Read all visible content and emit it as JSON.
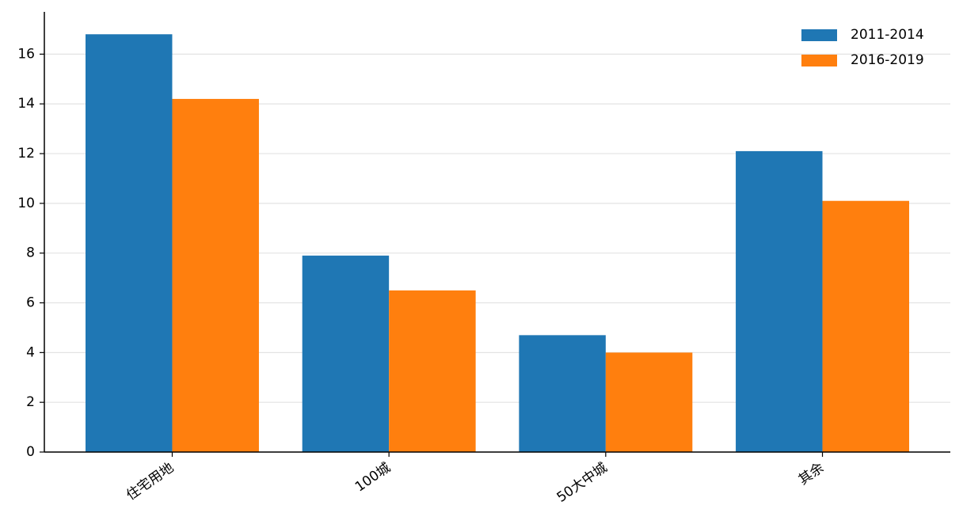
{
  "chart_data": {
    "type": "bar",
    "categories": [
      "住宅用地",
      "100城",
      "50大中城",
      "其余"
    ],
    "series": [
      {
        "name": "2011-2014",
        "color": "#1f77b4",
        "values": [
          16.8,
          7.9,
          4.7,
          12.1
        ]
      },
      {
        "name": "2016-2019",
        "color": "#ff7f0e",
        "values": [
          14.2,
          6.5,
          4.0,
          10.1
        ]
      }
    ],
    "ylim": [
      0,
      17.7
    ],
    "yticks": [
      0,
      2,
      4,
      6,
      8,
      10,
      12,
      14,
      16
    ],
    "grid": true,
    "legend": "upper right"
  }
}
